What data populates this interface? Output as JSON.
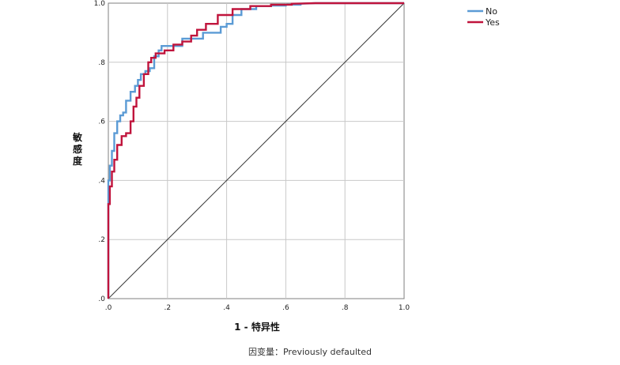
{
  "chart_data": {
    "type": "line",
    "title": "",
    "xlabel": "1 - 特异性",
    "ylabel": "敏感度",
    "xlim": [
      0,
      1
    ],
    "ylim": [
      0,
      1
    ],
    "x_ticks": [
      ".0",
      ".2",
      ".4",
      ".6",
      ".8",
      "1.0"
    ],
    "y_ticks": [
      ".0",
      ".2",
      ".4",
      ".6",
      ".8",
      "1.0"
    ],
    "grid": true,
    "legend_placement": "top-right",
    "reference_line": {
      "x": [
        0,
        1
      ],
      "y": [
        0,
        1
      ],
      "color": "#3a3a3a"
    },
    "series": [
      {
        "name": "No",
        "color": "#5b9bd5",
        "x": [
          0,
          0,
          0.005,
          0.005,
          0.012,
          0.012,
          0.02,
          0.02,
          0.03,
          0.03,
          0.04,
          0.04,
          0.05,
          0.05,
          0.06,
          0.06,
          0.075,
          0.075,
          0.09,
          0.09,
          0.1,
          0.1,
          0.11,
          0.11,
          0.125,
          0.125,
          0.14,
          0.14,
          0.155,
          0.155,
          0.17,
          0.17,
          0.18,
          0.18,
          0.25,
          0.25,
          0.32,
          0.32,
          0.38,
          0.38,
          0.4,
          0.4,
          0.42,
          0.42,
          0.45,
          0.45,
          0.5,
          0.5,
          0.55,
          0.55,
          0.6,
          0.6,
          0.65,
          0.65,
          0.7,
          1.0
        ],
        "y": [
          0,
          0.4,
          0.4,
          0.45,
          0.45,
          0.5,
          0.5,
          0.56,
          0.56,
          0.6,
          0.6,
          0.62,
          0.62,
          0.63,
          0.63,
          0.67,
          0.67,
          0.7,
          0.7,
          0.72,
          0.72,
          0.74,
          0.74,
          0.76,
          0.76,
          0.77,
          0.77,
          0.78,
          0.78,
          0.82,
          0.82,
          0.84,
          0.84,
          0.855,
          0.855,
          0.88,
          0.88,
          0.9,
          0.9,
          0.92,
          0.92,
          0.93,
          0.93,
          0.96,
          0.96,
          0.98,
          0.98,
          0.99,
          0.99,
          0.992,
          0.992,
          0.995,
          0.995,
          0.998,
          1.0,
          1.0
        ]
      },
      {
        "name": "Yes",
        "color": "#c0143c",
        "x": [
          0,
          0,
          0.005,
          0.005,
          0.012,
          0.012,
          0.02,
          0.02,
          0.03,
          0.03,
          0.045,
          0.045,
          0.06,
          0.06,
          0.075,
          0.075,
          0.085,
          0.085,
          0.095,
          0.095,
          0.105,
          0.105,
          0.12,
          0.12,
          0.135,
          0.135,
          0.145,
          0.145,
          0.16,
          0.16,
          0.19,
          0.19,
          0.22,
          0.22,
          0.25,
          0.25,
          0.28,
          0.28,
          0.3,
          0.3,
          0.33,
          0.33,
          0.37,
          0.37,
          0.42,
          0.42,
          0.48,
          0.48,
          0.55,
          0.55,
          0.62,
          0.62,
          0.7,
          1.0
        ],
        "y": [
          0,
          0.32,
          0.32,
          0.38,
          0.38,
          0.43,
          0.43,
          0.47,
          0.47,
          0.52,
          0.52,
          0.55,
          0.55,
          0.56,
          0.56,
          0.6,
          0.6,
          0.65,
          0.65,
          0.68,
          0.68,
          0.72,
          0.72,
          0.76,
          0.76,
          0.8,
          0.8,
          0.815,
          0.815,
          0.83,
          0.83,
          0.84,
          0.84,
          0.86,
          0.86,
          0.87,
          0.87,
          0.89,
          0.89,
          0.91,
          0.91,
          0.93,
          0.93,
          0.96,
          0.96,
          0.98,
          0.98,
          0.99,
          0.99,
          0.995,
          0.995,
          0.998,
          1.0,
          1.0
        ]
      }
    ],
    "footer": "因变量：Previously defaulted"
  }
}
